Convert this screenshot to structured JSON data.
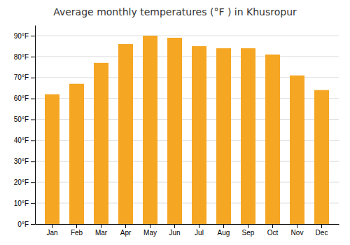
{
  "chart_data": {
    "type": "bar",
    "title": "Average monthly temperatures (°F ) in Khusropur",
    "categories": [
      "Jan",
      "Feb",
      "Mar",
      "Apr",
      "May",
      "Jun",
      "Jul",
      "Aug",
      "Sep",
      "Oct",
      "Nov",
      "Dec"
    ],
    "values": [
      62,
      67,
      77,
      86,
      90,
      89,
      85,
      84,
      84,
      81,
      71,
      64
    ],
    "color": "#F5A623",
    "ylim": [
      0,
      95
    ],
    "yticks": [
      {
        "value": 0,
        "label": "0°F"
      },
      {
        "value": 10,
        "label": "10°F"
      },
      {
        "value": 20,
        "label": "20°F"
      },
      {
        "value": 30,
        "label": "30°F"
      },
      {
        "value": 40,
        "label": "40°F"
      },
      {
        "value": 50,
        "label": "50°F"
      },
      {
        "value": 60,
        "label": "60°F"
      },
      {
        "value": 70,
        "label": "70°F"
      },
      {
        "value": 80,
        "label": "80°F"
      },
      {
        "value": 90,
        "label": "90°F"
      }
    ],
    "grid": true
  }
}
